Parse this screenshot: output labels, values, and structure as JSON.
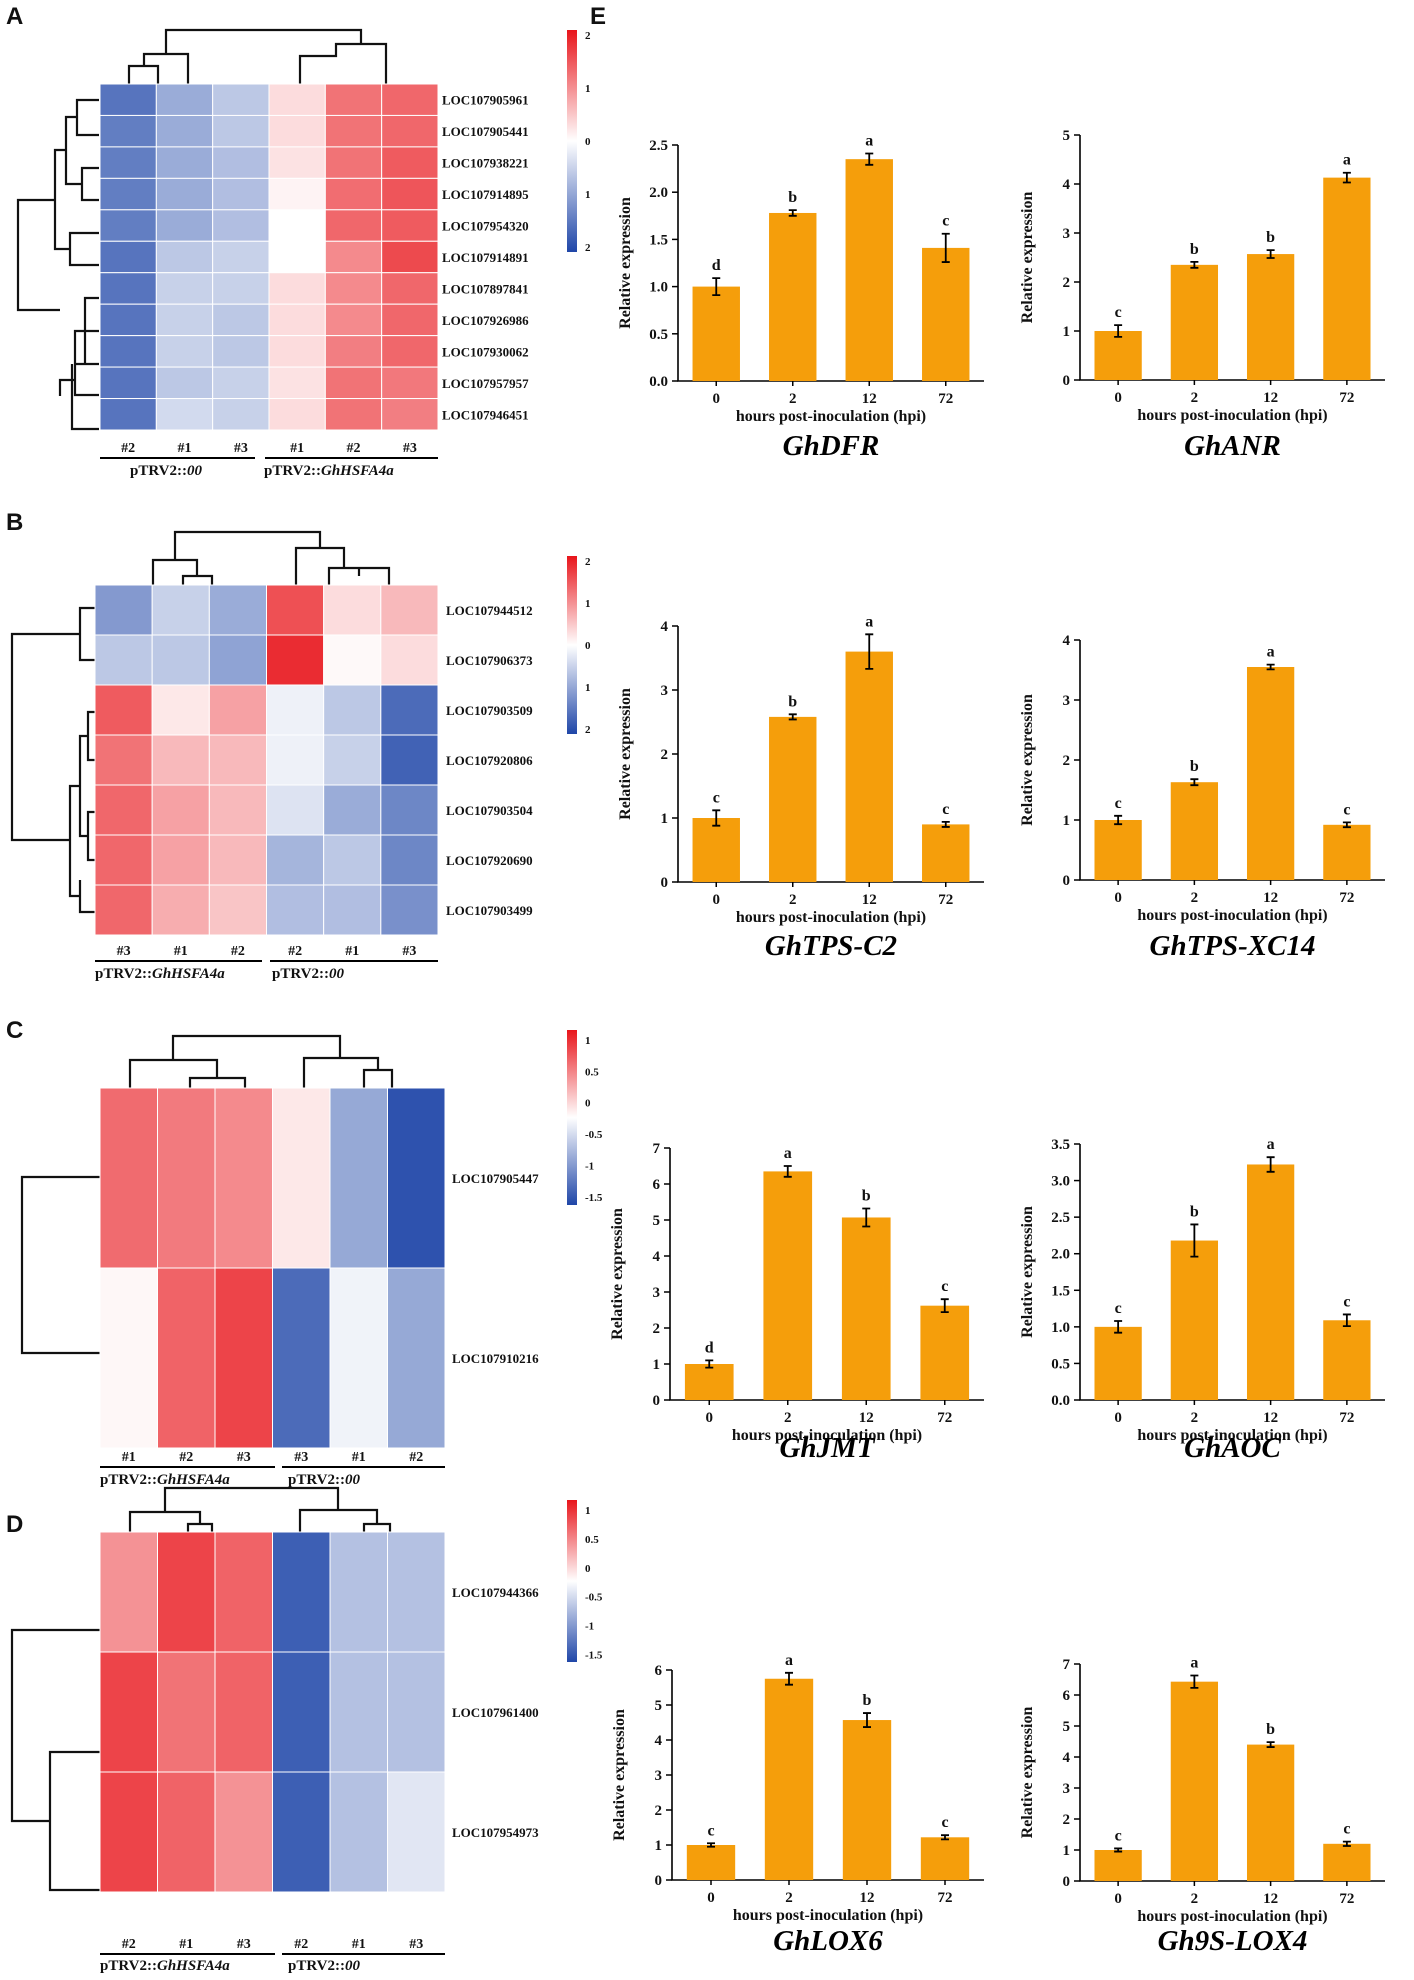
{
  "panel_labels": {
    "A": "A",
    "B": "B",
    "C": "C",
    "D": "D",
    "E": "E"
  },
  "colors": {
    "bar": "#F59E0B",
    "high": "#E8151B",
    "mid": "#FFFFFF",
    "low": "#1F46A8"
  },
  "heatmaps": [
    {
      "id": "A",
      "legend_ticks": [
        "2",
        "1",
        "0",
        "1",
        "2"
      ],
      "legend_values": [
        2,
        1,
        0,
        -1,
        -2
      ],
      "rows": [
        "LOC107905961",
        "LOC107905441",
        "LOC107938221",
        "LOC107914895",
        "LOC107954320",
        "LOC107914891",
        "LOC107897841",
        "LOC107926986",
        "LOC107930062",
        "LOC107957957",
        "LOC107946451"
      ],
      "cols": [
        "#2",
        "#1",
        "#3",
        "#1",
        "#2",
        "#3"
      ],
      "groups": [
        {
          "prefix": "pTRV2::",
          "italic": "00"
        },
        {
          "prefix": "pTRV2::",
          "italic": "GhHSFA4a"
        }
      ],
      "values": [
        [
          -1.5,
          -0.9,
          -0.6,
          0.3,
          1.2,
          1.3
        ],
        [
          -1.4,
          -0.9,
          -0.6,
          0.3,
          1.2,
          1.3
        ],
        [
          -1.4,
          -0.9,
          -0.7,
          0.25,
          1.2,
          1.4
        ],
        [
          -1.4,
          -0.9,
          -0.7,
          0.1,
          1.25,
          1.45
        ],
        [
          -1.4,
          -0.9,
          -0.7,
          0.0,
          1.3,
          1.4
        ],
        [
          -1.5,
          -0.6,
          -0.5,
          0.0,
          1.0,
          1.55
        ],
        [
          -1.5,
          -0.5,
          -0.5,
          0.3,
          1.0,
          1.3
        ],
        [
          -1.5,
          -0.5,
          -0.6,
          0.3,
          1.0,
          1.3
        ],
        [
          -1.5,
          -0.5,
          -0.6,
          0.3,
          1.1,
          1.3
        ],
        [
          -1.5,
          -0.6,
          -0.5,
          0.25,
          1.2,
          1.15
        ],
        [
          -1.5,
          -0.4,
          -0.5,
          0.3,
          1.2,
          1.1
        ]
      ]
    },
    {
      "id": "B",
      "legend_ticks": [
        "2",
        "1",
        "0",
        "1",
        "2"
      ],
      "legend_values": [
        2,
        1,
        0,
        -1,
        -2
      ],
      "rows": [
        "LOC107944512",
        "LOC107906373",
        "LOC107903509",
        "LOC107920806",
        "LOC107903504",
        "LOC107920690",
        "LOC107903499"
      ],
      "cols": [
        "#3",
        "#1",
        "#2",
        "#2",
        "#1",
        "#3"
      ],
      "groups": [
        {
          "prefix": "pTRV2::",
          "italic": "GhHSFA4a"
        },
        {
          "prefix": "pTRV2::",
          "italic": "00"
        }
      ],
      "values": [
        [
          -1.1,
          -0.5,
          -0.9,
          1.5,
          0.3,
          0.6
        ],
        [
          -0.6,
          -0.6,
          -1.0,
          1.8,
          0.05,
          0.3
        ],
        [
          1.4,
          0.2,
          0.8,
          -0.15,
          -0.6,
          -1.6
        ],
        [
          1.2,
          0.6,
          0.6,
          -0.15,
          -0.5,
          -1.7
        ],
        [
          1.3,
          0.8,
          0.6,
          -0.3,
          -0.9,
          -1.3
        ],
        [
          1.3,
          0.8,
          0.6,
          -0.8,
          -0.6,
          -1.3
        ],
        [
          1.3,
          0.7,
          0.5,
          -0.7,
          -0.7,
          -1.2
        ]
      ]
    },
    {
      "id": "C",
      "legend_ticks": [
        "1",
        "0.5",
        "0",
        "-0.5",
        "-1",
        "-1.5"
      ],
      "legend_values": [
        1,
        0.5,
        0,
        -0.5,
        -1,
        -1.5
      ],
      "rows": [
        "LOC107905447",
        "LOC107910216"
      ],
      "cols": [
        "#1",
        "#2",
        "#3",
        "#3",
        "#1",
        "#2"
      ],
      "groups": [
        {
          "prefix": "pTRV2::",
          "italic": "GhHSFA4a"
        },
        {
          "prefix": "pTRV2::",
          "italic": "00"
        }
      ],
      "values": [
        [
          0.95,
          0.85,
          0.75,
          0.15,
          -0.7,
          -1.4
        ],
        [
          0.05,
          1.0,
          1.2,
          -1.2,
          -0.1,
          -0.7
        ]
      ]
    },
    {
      "id": "D",
      "legend_ticks": [
        "1",
        "0.5",
        "0",
        "-0.5",
        "-1",
        "-1.5"
      ],
      "legend_values": [
        1,
        0.5,
        0,
        -0.5,
        -1,
        -1.5
      ],
      "rows": [
        "LOC107944366",
        "LOC107961400",
        "LOC107954973"
      ],
      "cols": [
        "#2",
        "#1",
        "#3",
        "#2",
        "#1",
        "#3"
      ],
      "groups": [
        {
          "prefix": "pTRV2::",
          "italic": "GhHSFA4a"
        },
        {
          "prefix": "pTRV2::",
          "italic": "00"
        }
      ],
      "values": [
        [
          0.7,
          1.2,
          1.0,
          -1.3,
          -0.5,
          -0.5
        ],
        [
          1.2,
          0.9,
          1.0,
          -1.3,
          -0.5,
          -0.5
        ],
        [
          1.2,
          1.0,
          0.7,
          -1.3,
          -0.5,
          -0.2
        ]
      ]
    }
  ],
  "chart_data": [
    {
      "type": "bar",
      "title": "GhDFR",
      "categories": [
        "0",
        "2",
        "12",
        "72"
      ],
      "values": [
        1.0,
        1.78,
        2.35,
        1.41
      ],
      "errors": [
        0.09,
        0.03,
        0.06,
        0.15
      ],
      "letters": [
        "d",
        "b",
        "a",
        "c"
      ],
      "xlabel": "hours post-inoculation (hpi)",
      "ylabel": "Relative expression",
      "ylim": [
        0,
        2.5
      ],
      "yticks": [
        "0.0",
        "0.5",
        "1.0",
        "1.5",
        "2.0",
        "2.5"
      ]
    },
    {
      "type": "bar",
      "title": "GhANR",
      "categories": [
        "0",
        "2",
        "12",
        "72"
      ],
      "values": [
        1.0,
        2.35,
        2.57,
        4.13
      ],
      "errors": [
        0.12,
        0.06,
        0.08,
        0.1
      ],
      "letters": [
        "c",
        "b",
        "b",
        "a"
      ],
      "xlabel": "hours post-inoculation (hpi)",
      "ylabel": "Relative expression",
      "ylim": [
        0,
        5
      ],
      "yticks": [
        "0",
        "1",
        "2",
        "3",
        "4",
        "5"
      ]
    },
    {
      "type": "bar",
      "title": "GhTPS-C2",
      "categories": [
        "0",
        "2",
        "12",
        "72"
      ],
      "values": [
        1.0,
        2.58,
        3.6,
        0.9
      ],
      "errors": [
        0.12,
        0.04,
        0.27,
        0.04
      ],
      "letters": [
        "c",
        "b",
        "a",
        "c"
      ],
      "xlabel": "hours post-inoculation (hpi)",
      "ylabel": "Relative expression",
      "ylim": [
        0,
        4
      ],
      "yticks": [
        "0",
        "1",
        "2",
        "3",
        "4"
      ]
    },
    {
      "type": "bar",
      "title": "GhTPS-XC14",
      "categories": [
        "0",
        "2",
        "12",
        "72"
      ],
      "values": [
        1.0,
        1.63,
        3.55,
        0.92
      ],
      "errors": [
        0.07,
        0.05,
        0.04,
        0.04
      ],
      "letters": [
        "c",
        "b",
        "a",
        "c"
      ],
      "xlabel": "hours post-inoculation (hpi)",
      "ylabel": "Relative expression",
      "ylim": [
        0,
        4
      ],
      "yticks": [
        "0",
        "1",
        "2",
        "3",
        "4"
      ]
    },
    {
      "type": "bar",
      "title": "GhJMT",
      "categories": [
        "0",
        "2",
        "12",
        "72"
      ],
      "values": [
        1.0,
        6.35,
        5.07,
        2.62
      ],
      "errors": [
        0.1,
        0.15,
        0.25,
        0.18
      ],
      "letters": [
        "d",
        "a",
        "b",
        "c"
      ],
      "xlabel": "hours post-inoculation (hpi)",
      "ylabel": "Relative expression",
      "ylim": [
        0,
        7
      ],
      "yticks": [
        "0",
        "1",
        "2",
        "3",
        "4",
        "5",
        "6",
        "7"
      ]
    },
    {
      "type": "bar",
      "title": "GhAOC",
      "categories": [
        "0",
        "2",
        "12",
        "72"
      ],
      "values": [
        1.0,
        2.18,
        3.22,
        1.09
      ],
      "errors": [
        0.08,
        0.22,
        0.1,
        0.08
      ],
      "letters": [
        "c",
        "b",
        "a",
        "c"
      ],
      "xlabel": "hours post-inoculation (hpi)",
      "ylabel": "Relative expression",
      "ylim": [
        0,
        3.5
      ],
      "yticks": [
        "0.0",
        "0.5",
        "1.0",
        "1.5",
        "2.0",
        "2.5",
        "3.0",
        "3.5"
      ]
    },
    {
      "type": "bar",
      "title": "GhLOX6",
      "categories": [
        "0",
        "2",
        "12",
        "72"
      ],
      "values": [
        1.0,
        5.75,
        4.57,
        1.22
      ],
      "errors": [
        0.05,
        0.17,
        0.2,
        0.06
      ],
      "letters": [
        "c",
        "a",
        "b",
        "c"
      ],
      "xlabel": "hours post-inoculation (hpi)",
      "ylabel": "Relative expression",
      "ylim": [
        0,
        6
      ],
      "yticks": [
        "0",
        "1",
        "2",
        "3",
        "4",
        "5",
        "6"
      ]
    },
    {
      "type": "bar",
      "title": "Gh9S-LOX4",
      "categories": [
        "0",
        "2",
        "12",
        "72"
      ],
      "values": [
        1.0,
        6.43,
        4.4,
        1.2
      ],
      "errors": [
        0.05,
        0.2,
        0.08,
        0.07
      ],
      "letters": [
        "c",
        "a",
        "b",
        "c"
      ],
      "xlabel": "hours post-inoculation (hpi)",
      "ylabel": "Relative expression",
      "ylim": [
        0,
        7
      ],
      "yticks": [
        "0",
        "1",
        "2",
        "3",
        "4",
        "5",
        "6",
        "7"
      ]
    }
  ]
}
